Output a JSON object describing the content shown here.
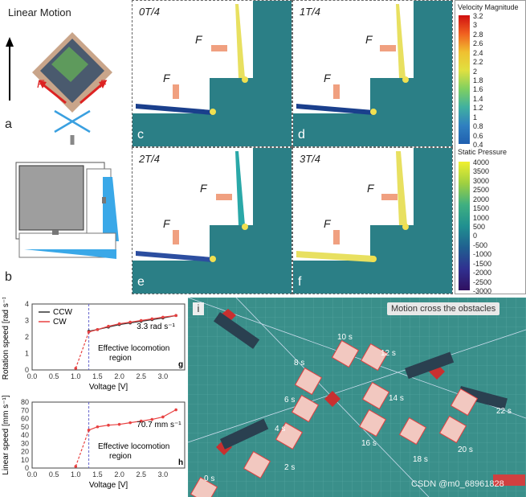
{
  "panel_a": {
    "title": "Linear Motion",
    "force_label": "F",
    "letter": "a"
  },
  "panel_b": {
    "letter": "b"
  },
  "sim_panels": [
    {
      "letter": "c",
      "time": "0T/4",
      "force": "F"
    },
    {
      "letter": "d",
      "time": "1T/4",
      "force": "F"
    },
    {
      "letter": "e",
      "time": "2T/4",
      "force": "F"
    },
    {
      "letter": "f",
      "time": "3T/4",
      "force": "F"
    }
  ],
  "colorbar_velocity": {
    "title": "Velocity Magnitude",
    "ticks": [
      "3.2",
      "3",
      "2.8",
      "2.6",
      "2.4",
      "2.2",
      "2",
      "1.8",
      "1.6",
      "1.4",
      "1.2",
      "1",
      "0.8",
      "0.6",
      "0.4"
    ]
  },
  "colorbar_pressure": {
    "title": "Static Pressure",
    "ticks": [
      "4000",
      "3500",
      "3000",
      "2500",
      "2000",
      "1500",
      "1000",
      "500",
      "0",
      "-500",
      "-1000",
      "-1500",
      "-2000",
      "-2500",
      "-3000"
    ]
  },
  "chart_data": [
    {
      "type": "line",
      "letter": "g",
      "xlabel": "Voltage [V]",
      "ylabel": "Rotation speed [rad s⁻¹]",
      "xlim": [
        0,
        3.5
      ],
      "ylim": [
        0,
        4
      ],
      "xticks": [
        "0.0",
        "0.5",
        "1.0",
        "1.5",
        "2.0",
        "2.5",
        "3.0"
      ],
      "yticks": [
        "0",
        "1",
        "2",
        "3",
        "4"
      ],
      "series": [
        {
          "name": "CCW",
          "x": [
            1.3,
            1.5,
            1.75,
            2.0,
            2.25,
            2.5,
            2.75,
            3.0,
            3.3
          ],
          "y": [
            2.35,
            2.45,
            2.6,
            2.75,
            2.85,
            2.95,
            3.05,
            3.15,
            3.3
          ]
        },
        {
          "name": "CW",
          "x": [
            1.0,
            1.3,
            1.5,
            1.75,
            2.0,
            2.25,
            2.5,
            2.75,
            3.0,
            3.3
          ],
          "y": [
            0.1,
            2.3,
            2.45,
            2.65,
            2.8,
            2.9,
            3.0,
            3.1,
            3.2,
            3.3
          ]
        }
      ],
      "annotation": "3.3 rad s⁻¹",
      "region_label": "Effective locomotion region",
      "legend": "top-left"
    },
    {
      "type": "line",
      "letter": "h",
      "xlabel": "Voltage [V]",
      "ylabel": "Linear speed [mm s⁻¹]",
      "xlim": [
        0,
        3.5
      ],
      "ylim": [
        0,
        80
      ],
      "xticks": [
        "0.0",
        "0.5",
        "1.0",
        "1.5",
        "2.0",
        "2.5",
        "3.0"
      ],
      "yticks": [
        "0",
        "10",
        "20",
        "30",
        "40",
        "50",
        "60",
        "70",
        "80"
      ],
      "series": [
        {
          "name": "CW",
          "x": [
            1.0,
            1.3,
            1.5,
            1.75,
            2.0,
            2.25,
            2.5,
            2.75,
            3.0,
            3.3
          ],
          "y": [
            2,
            46,
            50,
            52,
            53,
            55,
            57,
            59,
            62,
            70.7
          ]
        }
      ],
      "annotation": "70.7 mm s⁻¹",
      "region_label": "Effective locomotion region"
    }
  ],
  "panel_i": {
    "letter": "i",
    "title": "Motion cross the obstacles",
    "time_labels": [
      "0 s",
      "2 s",
      "4 s",
      "6 s",
      "8 s",
      "10 s",
      "12 s",
      "14 s",
      "16 s",
      "18 s",
      "20 s",
      "22 s"
    ],
    "watermark": "CSDN @m0_68961828"
  },
  "colors": {
    "ccw": "#333333",
    "cw": "#e84040",
    "fluid": "#1f6f7a",
    "mat": "#2a8b8d",
    "arrow_force": "#f0a080"
  }
}
